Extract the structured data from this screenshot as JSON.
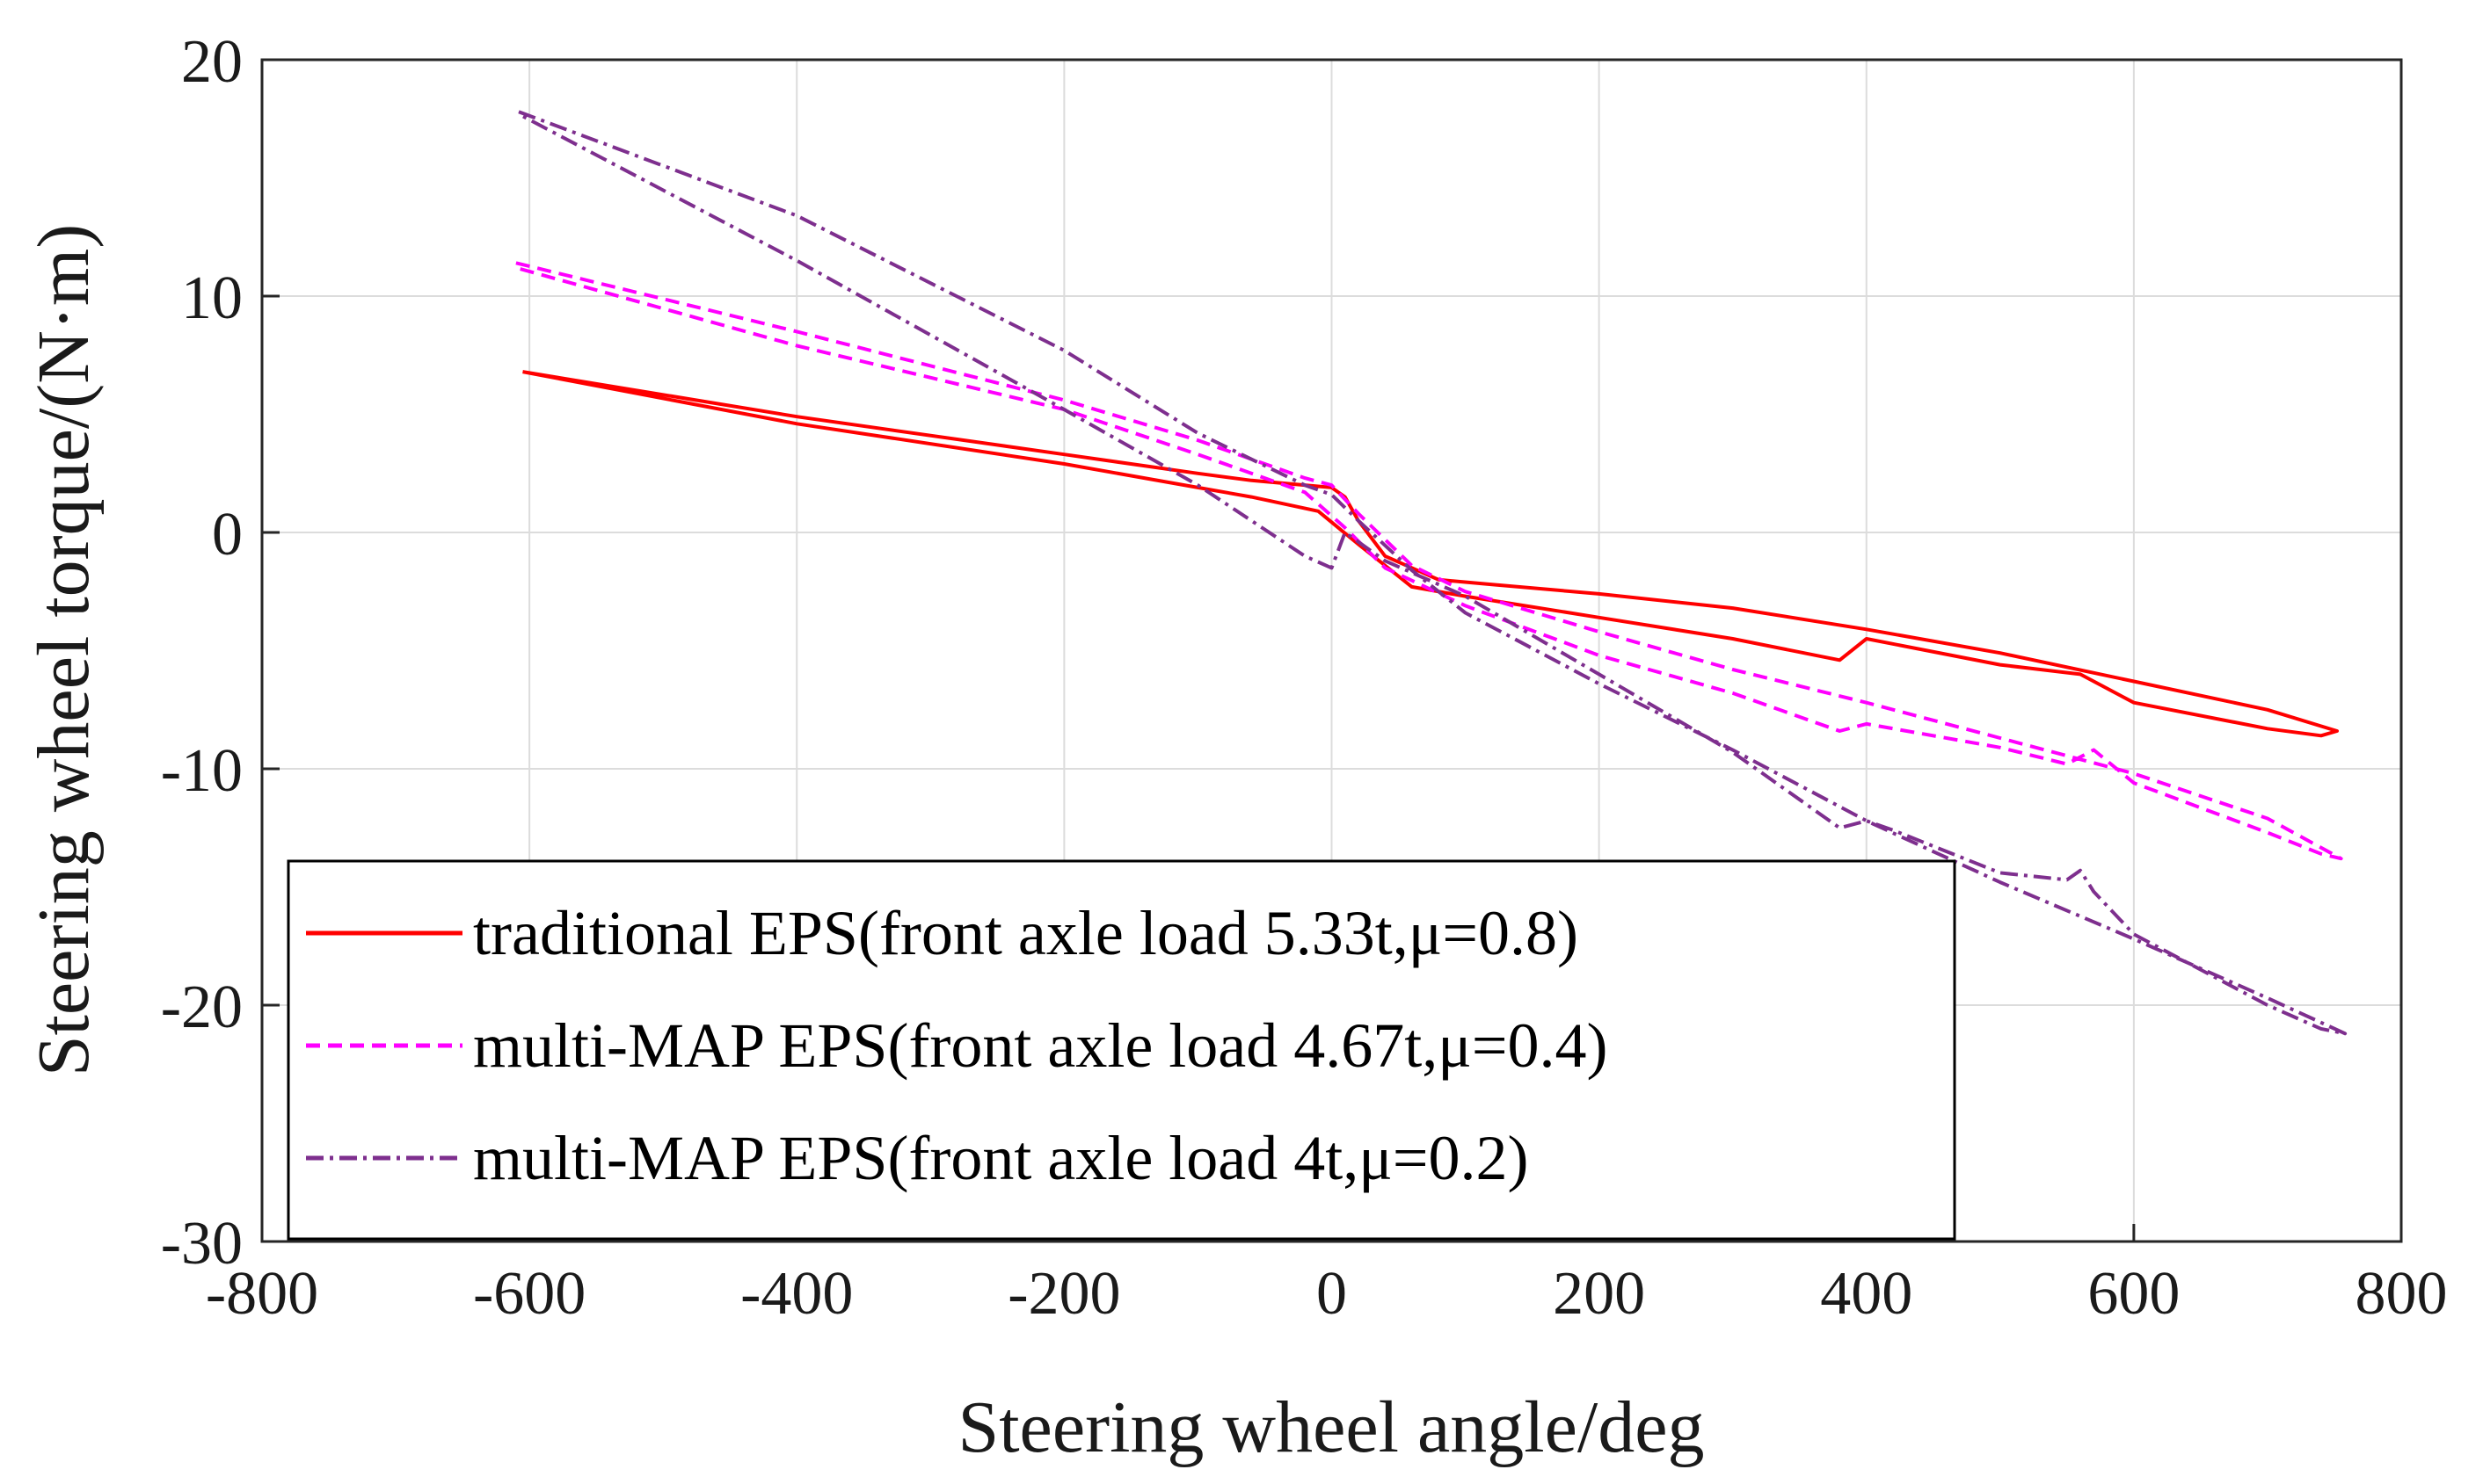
{
  "chart_data": {
    "type": "line",
    "title": "",
    "xlabel": "Steering wheel angle/deg",
    "ylabel": "Steering wheel torque/(N·m)",
    "xlim": [
      -800,
      800
    ],
    "ylim": [
      -30,
      20
    ],
    "xticks": [
      -800,
      -600,
      -400,
      -200,
      0,
      200,
      400,
      600,
      800
    ],
    "yticks": [
      20,
      10,
      0,
      -10,
      -20,
      -30
    ],
    "grid": true,
    "legend_position": "lower-left",
    "series": [
      {
        "name": "traditional EPS(front axle load 5.33t,μ=0.8)",
        "color": "#ff0000",
        "style": "solid",
        "x": [
          -605,
          -400,
          -200,
          -100,
          -60,
          0,
          10,
          20,
          40,
          80,
          120,
          200,
          300,
          400,
          500,
          600,
          700,
          752,
          740,
          700,
          600,
          560,
          500,
          400,
          380,
          300,
          200,
          100,
          60,
          20,
          -10,
          -60,
          -100,
          -200,
          -400,
          -605
        ],
        "y": [
          6.8,
          4.9,
          3.3,
          2.5,
          2.2,
          1.9,
          1.5,
          0.5,
          -1.0,
          -2.0,
          -2.2,
          -2.6,
          -3.2,
          -4.1,
          -5.1,
          -6.3,
          -7.5,
          -8.4,
          -8.6,
          -8.3,
          -7.2,
          -6.0,
          -5.6,
          -4.5,
          -5.4,
          -4.5,
          -3.6,
          -2.7,
          -2.3,
          -0.5,
          0.9,
          1.5,
          1.9,
          2.9,
          4.6,
          6.8
        ]
      },
      {
        "name": "multi-MAP EPS(front axle load 4.67t,μ=0.4)",
        "color": "#ff00ff",
        "style": "dashed",
        "x": [
          -610,
          -400,
          -200,
          -100,
          -20,
          0,
          20,
          60,
          100,
          200,
          300,
          400,
          500,
          600,
          700,
          755,
          740,
          700,
          600,
          570,
          550,
          500,
          400,
          380,
          300,
          200,
          100,
          40,
          10,
          -20,
          -100,
          -200,
          -400,
          -610
        ],
        "y": [
          11.4,
          8.5,
          5.6,
          3.9,
          2.3,
          2.0,
          0.8,
          -1.4,
          -2.5,
          -4.2,
          -5.8,
          -7.2,
          -8.7,
          -10.2,
          -12.1,
          -13.8,
          -13.6,
          -12.7,
          -10.6,
          -9.2,
          -9.8,
          -9.1,
          -8.1,
          -8.4,
          -6.8,
          -5.2,
          -3.1,
          -1.5,
          0.2,
          1.7,
          3.3,
          5.2,
          7.9,
          11.2
        ]
      },
      {
        "name": "multi-MAP EPS(front axle load 4t,μ=0.2)",
        "color": "#7e2f8e",
        "style": "dashdot",
        "x": [
          -608,
          -400,
          -200,
          -100,
          -20,
          0,
          20,
          60,
          100,
          200,
          300,
          400,
          500,
          600,
          700,
          758,
          740,
          700,
          600,
          570,
          560,
          550,
          500,
          420,
          400,
          380,
          300,
          200,
          100,
          40,
          10,
          0,
          -20,
          -100,
          -200,
          -400,
          -608
        ],
        "y": [
          17.8,
          13.4,
          7.7,
          4.2,
          2.0,
          1.6,
          0.5,
          -1.6,
          -3.4,
          -6.4,
          -9.2,
          -12.2,
          -14.8,
          -17.2,
          -19.7,
          -21.2,
          -21.0,
          -20.0,
          -17.0,
          -15.2,
          -14.3,
          -14.7,
          -14.4,
          -12.6,
          -12.2,
          -12.5,
          -9.3,
          -6.0,
          -2.7,
          -1.2,
          0.0,
          -1.5,
          -1.0,
          2.0,
          5.2,
          11.5,
          17.7
        ]
      }
    ]
  }
}
